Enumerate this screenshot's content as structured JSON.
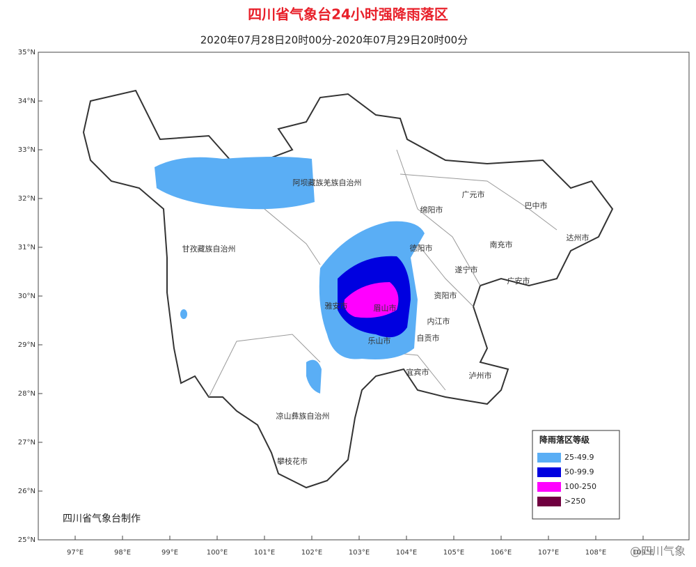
{
  "title": "四川省气象台24小时强降雨落区",
  "subtitle": "2020年07月28日20时00分-2020年07月29日20时00分",
  "lat_ticks": [
    "35°N",
    "34°N",
    "33°N",
    "32°N",
    "31°N",
    "30°N",
    "29°N",
    "28°N",
    "27°N",
    "26°N",
    "25°N"
  ],
  "lon_ticks": [
    "97°E",
    "98°E",
    "99°E",
    "100°E",
    "101°E",
    "102°E",
    "103°E",
    "104°E",
    "105°E",
    "106°E",
    "107°E",
    "108°E",
    "109°E"
  ],
  "regions": [
    "阿坝藏族羌族自治州",
    "甘孜藏族自治州",
    "广元市",
    "绵阳市",
    "巴中市",
    "达州市",
    "南充市",
    "德阳市",
    "遂宁市",
    "广安市",
    "资阳市",
    "雅安市",
    "眉山市",
    "内江市",
    "乐山市",
    "自贡市",
    "宜宾市",
    "泸州市",
    "凉山彝族自治州",
    "攀枝花市"
  ],
  "legend": {
    "title": "降雨落区等级",
    "items": [
      {
        "label": "25-49.9",
        "color": "#5aaef5"
      },
      {
        "label": "50-99.9",
        "color": "#0000e0"
      },
      {
        "label": "100-250",
        "color": "#ff00ff"
      },
      {
        "label": ">250",
        "color": "#700040"
      }
    ]
  },
  "credit": "四川省气象台制作",
  "watermark": "@四川气象"
}
